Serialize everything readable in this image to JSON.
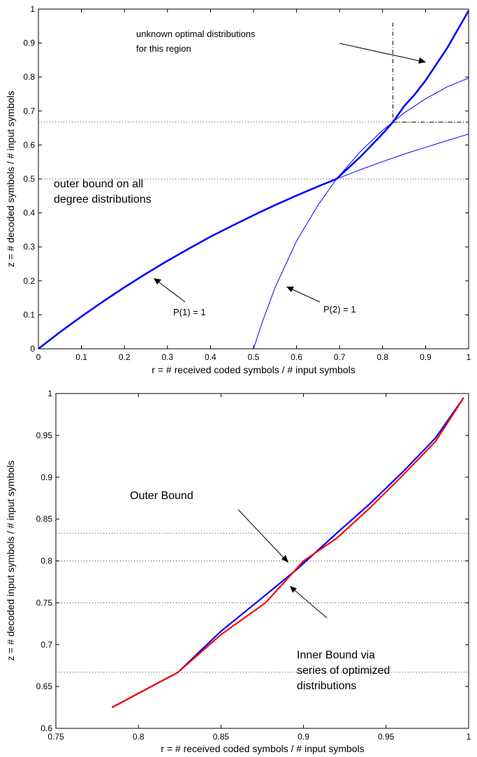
{
  "chart_data": [
    {
      "type": "line",
      "xlabel": "r = # received coded symbols / # input symbols",
      "ylabel": "z = # decoded symbols / # input symbols",
      "xlim": [
        0,
        1
      ],
      "ylim": [
        0,
        1
      ],
      "x_ticks": [
        "0",
        "0.1",
        "0.2",
        "0.3",
        "0.4",
        "0.5",
        "0.6",
        "0.7",
        "0.8",
        "0.9",
        "1"
      ],
      "y_ticks": [
        "0",
        "0.1",
        "0.2",
        "0.3",
        "0.4",
        "0.5",
        "0.6",
        "0.7",
        "0.8",
        "0.9",
        "1"
      ],
      "grid": false,
      "reference_lines": [
        {
          "axis": "y",
          "value": 0.5,
          "style": "dotted"
        },
        {
          "axis": "y",
          "value": 0.667,
          "style": "dotted"
        }
      ],
      "series": [
        {
          "color": "#0000ff",
          "style": "thick",
          "x": [
            0,
            0.05,
            0.1,
            0.15,
            0.2,
            0.25,
            0.3,
            0.35,
            0.4,
            0.45,
            0.5,
            0.55,
            0.6,
            0.65,
            0.693,
            0.75,
            0.8,
            0.824,
            0.85,
            0.875,
            0.9,
            0.95,
            1.0
          ],
          "y": [
            0,
            0.049,
            0.095,
            0.139,
            0.181,
            0.221,
            0.259,
            0.295,
            0.33,
            0.362,
            0.393,
            0.423,
            0.451,
            0.478,
            0.5,
            0.567,
            0.633,
            0.667,
            0.714,
            0.749,
            0.79,
            0.885,
            0.995
          ]
        },
        {
          "color": "#0000ff",
          "style": "thin",
          "x": [
            0.693,
            0.75,
            0.8,
            0.85,
            0.9,
            0.95,
            1.0
          ],
          "y": [
            0.5,
            0.528,
            0.551,
            0.573,
            0.593,
            0.613,
            0.632
          ]
        },
        {
          "color": "#0000ff",
          "style": "thin",
          "x": [
            0,
            0.5,
            0.52,
            0.55,
            0.6,
            0.65,
            0.693,
            0.75,
            0.8,
            0.85,
            0.9,
            0.95,
            1.0
          ],
          "y": [
            0,
            0,
            0.077,
            0.18,
            0.317,
            0.423,
            0.5,
            0.583,
            0.643,
            0.694,
            0.736,
            0.771,
            0.797
          ]
        },
        {
          "color": "#000000",
          "style": "dash-dot",
          "x": [
            0.824,
            0.824,
            1.0
          ],
          "y": [
            0.96,
            0.667,
            0.667
          ]
        }
      ],
      "annotations": [
        {
          "text_lines": [
            "unknown optimal distributions",
            "for this region"
          ],
          "arrow_to": [
            0.885,
            0.875
          ]
        },
        {
          "text_lines": [
            "outer bound on all",
            "degree distributions"
          ]
        },
        {
          "text_lines": [
            "P(1) = 1"
          ],
          "arrow_to": [
            0.265,
            0.23
          ]
        },
        {
          "text_lines": [
            "P(2) = 1"
          ],
          "arrow_to": [
            0.555,
            0.21
          ]
        }
      ]
    },
    {
      "type": "line",
      "xlabel": "r = # received coded symbols / # input symbols",
      "ylabel": "z = # decoded input symbols / # input symbols",
      "xlim": [
        0.75,
        1
      ],
      "ylim": [
        0.6,
        1
      ],
      "x_ticks": [
        "0.75",
        "0.8",
        "0.85",
        "0.9",
        "0.95",
        "1"
      ],
      "y_ticks": [
        "0.6",
        "0.65",
        "0.7",
        "0.75",
        "0.8",
        "0.85",
        "0.9",
        "0.95",
        "1"
      ],
      "grid": false,
      "reference_lines": [
        {
          "axis": "y",
          "value": 0.667,
          "style": "dotted"
        },
        {
          "axis": "y",
          "value": 0.75,
          "style": "dotted"
        },
        {
          "axis": "y",
          "value": 0.8,
          "style": "dotted"
        },
        {
          "axis": "y",
          "value": 0.833,
          "style": "dotted"
        }
      ],
      "series": [
        {
          "color": "#0000ff",
          "x": [
            0.784,
            0.824,
            0.85,
            0.875,
            0.896,
            0.92,
            0.94,
            0.96,
            0.98,
            0.997
          ],
          "y": [
            0.625,
            0.667,
            0.716,
            0.756,
            0.79,
            0.833,
            0.868,
            0.906,
            0.947,
            0.995
          ]
        },
        {
          "color": "#ff0000",
          "x": [
            0.784,
            0.824,
            0.85,
            0.877,
            0.9,
            0.92,
            0.94,
            0.96,
            0.98,
            0.997
          ],
          "y": [
            0.625,
            0.667,
            0.712,
            0.75,
            0.8,
            0.827,
            0.863,
            0.902,
            0.943,
            0.995
          ]
        }
      ],
      "annotations": [
        {
          "text_lines": [
            "Outer Bound"
          ],
          "arrow_to": [
            0.893,
            0.787
          ]
        },
        {
          "text_lines": [
            "Inner Bound via",
            "series of optimized",
            "distributions"
          ],
          "arrow_to": [
            0.884,
            0.774
          ]
        }
      ]
    }
  ]
}
